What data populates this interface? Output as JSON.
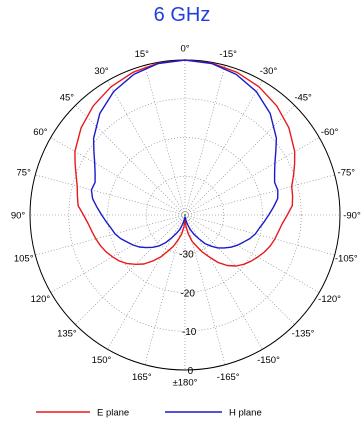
{
  "chart_data": {
    "type": "polar",
    "title": "6 GHz",
    "angle_tick_labels": [
      {
        "angle": 0,
        "label": "0°"
      },
      {
        "angle": -15,
        "label": "15°"
      },
      {
        "angle": 15,
        "label": "-15°"
      },
      {
        "angle": -30,
        "label": "30°"
      },
      {
        "angle": 30,
        "label": "-30°"
      },
      {
        "angle": -45,
        "label": "45°"
      },
      {
        "angle": 45,
        "label": "-45°"
      },
      {
        "angle": -60,
        "label": "60°"
      },
      {
        "angle": 60,
        "label": "-60°"
      },
      {
        "angle": -75,
        "label": "75°"
      },
      {
        "angle": 75,
        "label": "-75°"
      },
      {
        "angle": -90,
        "label": "90°"
      },
      {
        "angle": 90,
        "label": "-90°"
      },
      {
        "angle": -105,
        "label": "105°"
      },
      {
        "angle": 105,
        "label": "-105°"
      },
      {
        "angle": -120,
        "label": "120°"
      },
      {
        "angle": 120,
        "label": "-120°"
      },
      {
        "angle": -135,
        "label": "135°"
      },
      {
        "angle": 135,
        "label": "-135°"
      },
      {
        "angle": -150,
        "label": "150°"
      },
      {
        "angle": 150,
        "label": "-150°"
      },
      {
        "angle": -165,
        "label": "165°"
      },
      {
        "angle": 165,
        "label": "-165°"
      },
      {
        "angle": 180,
        "label": "±180°"
      }
    ],
    "radial_tick_labels": [
      {
        "value": -30,
        "label": "-30"
      },
      {
        "value": -20,
        "label": "-20"
      },
      {
        "value": -10,
        "label": "-10"
      },
      {
        "value": 0,
        "label": "0"
      }
    ],
    "r_range": [
      -40,
      0
    ],
    "grid": true,
    "legend_position": "bottom",
    "series": [
      {
        "name": "E plane",
        "color": "#e8191b",
        "points": [
          [
            0,
            0
          ],
          [
            10,
            -0.2
          ],
          [
            20,
            -0.8
          ],
          [
            30,
            -1.8
          ],
          [
            40,
            -3.2
          ],
          [
            50,
            -5
          ],
          [
            60,
            -7.3
          ],
          [
            65,
            -8.8
          ],
          [
            70,
            -10.2
          ],
          [
            75,
            -11.5
          ],
          [
            80,
            -11.8
          ],
          [
            85,
            -12.2
          ],
          [
            90,
            -13.6
          ],
          [
            95,
            -14.8
          ],
          [
            100,
            -15.5
          ],
          [
            105,
            -16
          ],
          [
            110,
            -16.6
          ],
          [
            115,
            -17.4
          ],
          [
            120,
            -18.3
          ],
          [
            125,
            -19.2
          ],
          [
            130,
            -20.2
          ],
          [
            135,
            -21.4
          ],
          [
            140,
            -23
          ],
          [
            145,
            -25
          ],
          [
            150,
            -27.5
          ],
          [
            155,
            -29.5
          ],
          [
            160,
            -31.5
          ],
          [
            165,
            -33
          ],
          [
            170,
            -35
          ],
          [
            175,
            -37
          ],
          [
            180,
            -39
          ],
          [
            -175,
            -37
          ],
          [
            -170,
            -35
          ],
          [
            -165,
            -33.5
          ],
          [
            -160,
            -31.5
          ],
          [
            -155,
            -29.8
          ],
          [
            -150,
            -27.5
          ],
          [
            -145,
            -25.5
          ],
          [
            -140,
            -23.5
          ],
          [
            -135,
            -22
          ],
          [
            -130,
            -20.5
          ],
          [
            -125,
            -19.3
          ],
          [
            -120,
            -18.4
          ],
          [
            -115,
            -17.5
          ],
          [
            -110,
            -16.8
          ],
          [
            -105,
            -16.2
          ],
          [
            -100,
            -15.6
          ],
          [
            -95,
            -14.9
          ],
          [
            -90,
            -13.8
          ],
          [
            -85,
            -12.3
          ],
          [
            -80,
            -11.8
          ],
          [
            -75,
            -11.2
          ],
          [
            -70,
            -10.1
          ],
          [
            -65,
            -8.7
          ],
          [
            -60,
            -7.2
          ],
          [
            -50,
            -5
          ],
          [
            -40,
            -3.2
          ],
          [
            -30,
            -1.8
          ],
          [
            -20,
            -0.8
          ],
          [
            -10,
            -0.2
          ],
          [
            0,
            0
          ]
        ]
      },
      {
        "name": "H plane",
        "color": "#1a1acc",
        "points": [
          [
            0,
            0
          ],
          [
            10,
            -0.3
          ],
          [
            20,
            -1.4
          ],
          [
            30,
            -3.2
          ],
          [
            40,
            -5.8
          ],
          [
            50,
            -9.2
          ],
          [
            55,
            -11.4
          ],
          [
            60,
            -13.2
          ],
          [
            65,
            -14.5
          ],
          [
            70,
            -15.4
          ],
          [
            75,
            -15.2
          ],
          [
            80,
            -15.7
          ],
          [
            85,
            -17.1
          ],
          [
            90,
            -18.4
          ],
          [
            95,
            -19.5
          ],
          [
            100,
            -20.5
          ],
          [
            105,
            -21.2
          ],
          [
            110,
            -22.2
          ],
          [
            115,
            -23.4
          ],
          [
            120,
            -24.4
          ],
          [
            125,
            -25.5
          ],
          [
            130,
            -26.8
          ],
          [
            135,
            -28
          ],
          [
            140,
            -29.5
          ],
          [
            145,
            -31
          ],
          [
            150,
            -33
          ],
          [
            155,
            -34.5
          ],
          [
            160,
            -36
          ],
          [
            165,
            -37.5
          ],
          [
            170,
            -38.5
          ],
          [
            180,
            -39.5
          ],
          [
            -170,
            -38.5
          ],
          [
            -165,
            -37.5
          ],
          [
            -160,
            -36
          ],
          [
            -155,
            -34.8
          ],
          [
            -150,
            -33.2
          ],
          [
            -145,
            -31.3
          ],
          [
            -140,
            -29.6
          ],
          [
            -135,
            -28.2
          ],
          [
            -130,
            -26.9
          ],
          [
            -125,
            -25.6
          ],
          [
            -120,
            -24.5
          ],
          [
            -115,
            -23.5
          ],
          [
            -110,
            -22.3
          ],
          [
            -105,
            -21.3
          ],
          [
            -100,
            -20.6
          ],
          [
            -95,
            -19.6
          ],
          [
            -90,
            -18.5
          ],
          [
            -85,
            -17.2
          ],
          [
            -80,
            -15.8
          ],
          [
            -75,
            -15
          ],
          [
            -70,
            -15.3
          ],
          [
            -65,
            -14.4
          ],
          [
            -60,
            -13.1
          ],
          [
            -55,
            -11.3
          ],
          [
            -50,
            -9.2
          ],
          [
            -40,
            -5.8
          ],
          [
            -30,
            -3.2
          ],
          [
            -20,
            -1.4
          ],
          [
            -10,
            -0.3
          ],
          [
            0,
            0
          ]
        ]
      }
    ]
  }
}
